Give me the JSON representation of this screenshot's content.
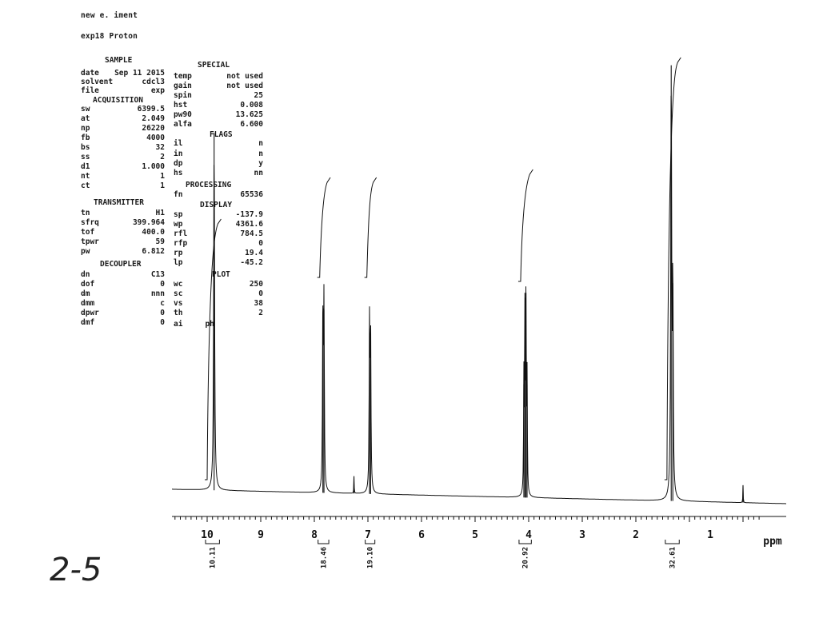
{
  "header": {
    "line1": "new e.   iment",
    "line2": "exp18  Proton"
  },
  "sections": {
    "sample": "SAMPLE",
    "acquisition": "ACQUISITION",
    "transmitter": "TRANSMITTER",
    "decoupler": "DECOUPLER",
    "special": "SPECIAL",
    "flags": "FLAGS",
    "processing": "PROCESSING",
    "display": "DISPLAY",
    "plot": "PLOT"
  },
  "left_params": [
    [
      "date",
      "Sep 11 2015"
    ],
    [
      "solvent",
      "cdcl3"
    ],
    [
      "file",
      "exp"
    ],
    [
      "sw",
      "6399.5"
    ],
    [
      "at",
      "2.049"
    ],
    [
      "np",
      "26220"
    ],
    [
      "fb",
      "4000"
    ],
    [
      "bs",
      "32"
    ],
    [
      "ss",
      "2"
    ],
    [
      "d1",
      "1.000"
    ],
    [
      "nt",
      "1"
    ],
    [
      "ct",
      "1"
    ],
    [
      "tn",
      "H1"
    ],
    [
      "sfrq",
      "399.964"
    ],
    [
      "tof",
      "400.0"
    ],
    [
      "tpwr",
      "59"
    ],
    [
      "pw",
      "6.812"
    ],
    [
      "dn",
      "C13"
    ],
    [
      "dof",
      "0"
    ],
    [
      "dm",
      "nnn"
    ],
    [
      "dmm",
      "c"
    ],
    [
      "dpwr",
      "0"
    ],
    [
      "dmf",
      "0"
    ]
  ],
  "right_params": [
    [
      "temp",
      "not used"
    ],
    [
      "gain",
      "not used"
    ],
    [
      "spin",
      "25"
    ],
    [
      "hst",
      "0.008"
    ],
    [
      "pw90",
      "13.625"
    ],
    [
      "alfa",
      "6.600"
    ],
    [
      "il",
      "n"
    ],
    [
      "in",
      "n"
    ],
    [
      "dp",
      "y"
    ],
    [
      "hs",
      "nn"
    ],
    [
      "fn",
      "65536"
    ],
    [
      "sp",
      "-137.9"
    ],
    [
      "wp",
      "4361.6"
    ],
    [
      "rfl",
      "784.5"
    ],
    [
      "rfp",
      "0"
    ],
    [
      "rp",
      "19.4"
    ],
    [
      "lp",
      "-45.2"
    ],
    [
      "wc",
      "250"
    ],
    [
      "sc",
      "0"
    ],
    [
      "vs",
      "38"
    ],
    [
      "th",
      "2"
    ],
    [
      "ai",
      "ph"
    ]
  ],
  "handwritten_label": "2-5",
  "chart_data": {
    "type": "line",
    "xlabel": "ppm",
    "xlim": [
      10.6,
      -0.3
    ],
    "reversed_x": true,
    "ticks": [
      10,
      9,
      8,
      7,
      6,
      5,
      4,
      3,
      2,
      1
    ],
    "peaks": [
      {
        "ppm": 9.87,
        "height": 0.82,
        "width": 0.01
      },
      {
        "ppm": 7.84,
        "height": 0.43,
        "width": 0.008
      },
      {
        "ppm": 7.82,
        "height": 0.42,
        "width": 0.008
      },
      {
        "ppm": 6.97,
        "height": 0.38,
        "width": 0.008
      },
      {
        "ppm": 6.95,
        "height": 0.37,
        "width": 0.008
      },
      {
        "ppm": 7.26,
        "height": 0.04,
        "width": 0.004
      },
      {
        "ppm": 4.09,
        "height": 0.26,
        "width": 0.006
      },
      {
        "ppm": 4.07,
        "height": 0.47,
        "width": 0.006
      },
      {
        "ppm": 4.05,
        "height": 0.47,
        "width": 0.006
      },
      {
        "ppm": 4.03,
        "height": 0.26,
        "width": 0.006
      },
      {
        "ppm": 1.34,
        "height": 1.0,
        "width": 0.01
      },
      {
        "ppm": 1.31,
        "height": 0.5,
        "width": 0.008
      },
      {
        "ppm": 0.0,
        "height": 0.04,
        "width": 0.004
      }
    ],
    "integrals": [
      {
        "from": 10.0,
        "to": 9.8,
        "label": "10.11"
      },
      {
        "from": 7.9,
        "to": 7.76,
        "label": "18.46"
      },
      {
        "from": 7.02,
        "to": 6.9,
        "label": "19.10"
      },
      {
        "from": 4.15,
        "to": 3.98,
        "label": "20.92"
      },
      {
        "from": 1.42,
        "to": 1.22,
        "label": "32.61"
      }
    ]
  }
}
